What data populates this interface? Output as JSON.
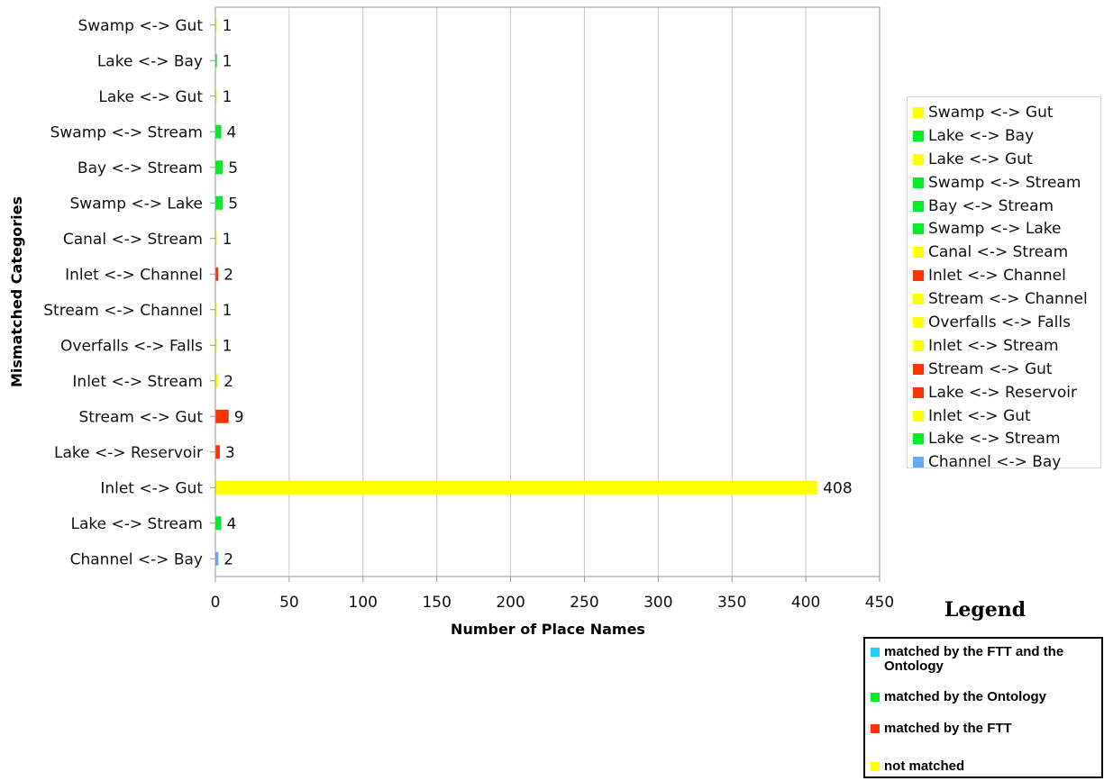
{
  "chart_data": {
    "type": "bar",
    "orientation": "horizontal",
    "ylabel": "Mismatched Categories",
    "xlabel": "Number of Place Names",
    "xlim": [
      0,
      450
    ],
    "xticks": [
      0,
      50,
      100,
      150,
      200,
      250,
      300,
      350,
      400,
      450
    ],
    "grid": "vertical",
    "categories": [
      "Swamp <-> Gut",
      "Lake <-> Bay",
      "Lake <-> Gut",
      "Swamp <-> Stream",
      "Bay <-> Stream",
      "Swamp <-> Lake",
      "Canal <-> Stream",
      "Inlet <-> Channel",
      "Stream <-> Channel",
      "Overfalls <-> Falls",
      "Inlet <-> Stream",
      "Stream <-> Gut",
      "Lake <-> Reservoir",
      "Inlet <-> Gut",
      "Lake <-> Stream",
      "Channel <-> Bay"
    ],
    "values": [
      1,
      1,
      1,
      4,
      5,
      5,
      1,
      2,
      1,
      1,
      2,
      9,
      3,
      408,
      4,
      2
    ],
    "data_labels": [
      "1",
      "1",
      "1",
      "4",
      "5",
      "5",
      "1",
      "2",
      "1",
      "1",
      "2",
      "9",
      "3",
      "408",
      "4",
      "2"
    ],
    "bar_colors": [
      "#ffff00",
      "#00ee22",
      "#ffff00",
      "#00ee22",
      "#00ee22",
      "#00ee22",
      "#ffff00",
      "#ff3300",
      "#ffff00",
      "#ffff00",
      "#ffff00",
      "#ff3300",
      "#ff3300",
      "#ffff00",
      "#00ee22",
      "#66aaff"
    ],
    "legend_placement": "right"
  },
  "category_legend": [
    {
      "label": "Swamp <-> Gut",
      "color": "#ffff00"
    },
    {
      "label": "Lake <-> Bay",
      "color": "#00ee22"
    },
    {
      "label": "Lake <-> Gut",
      "color": "#ffff00"
    },
    {
      "label": "Swamp <-> Stream",
      "color": "#00ee22"
    },
    {
      "label": "Bay <-> Stream",
      "color": "#00ee22"
    },
    {
      "label": "Swamp <-> Lake",
      "color": "#00ee22"
    },
    {
      "label": "Canal <-> Stream",
      "color": "#ffff00"
    },
    {
      "label": "Inlet <-> Channel",
      "color": "#ff3300"
    },
    {
      "label": "Stream <-> Channel",
      "color": "#ffff00"
    },
    {
      "label": "Overfalls <-> Falls",
      "color": "#ffff00"
    },
    {
      "label": "Inlet <-> Stream",
      "color": "#ffff00"
    },
    {
      "label": "Stream <-> Gut",
      "color": "#ff3300"
    },
    {
      "label": "Lake <-> Reservoir",
      "color": "#ff3300"
    },
    {
      "label": "Inlet <-> Gut",
      "color": "#ffff00"
    },
    {
      "label": "Lake <-> Stream",
      "color": "#00ee22"
    },
    {
      "label": "Channel <-> Bay",
      "color": "#66aaff"
    }
  ],
  "key": {
    "title": "Legend",
    "items": [
      {
        "label": "matched by the FTT and the Ontology",
        "color": "#22ccff"
      },
      {
        "label": "matched by the Ontology",
        "color": "#00ee22"
      },
      {
        "label": "matched by the FTT",
        "color": "#ff3300"
      },
      {
        "label": "not matched",
        "color": "#ffff00"
      }
    ]
  }
}
